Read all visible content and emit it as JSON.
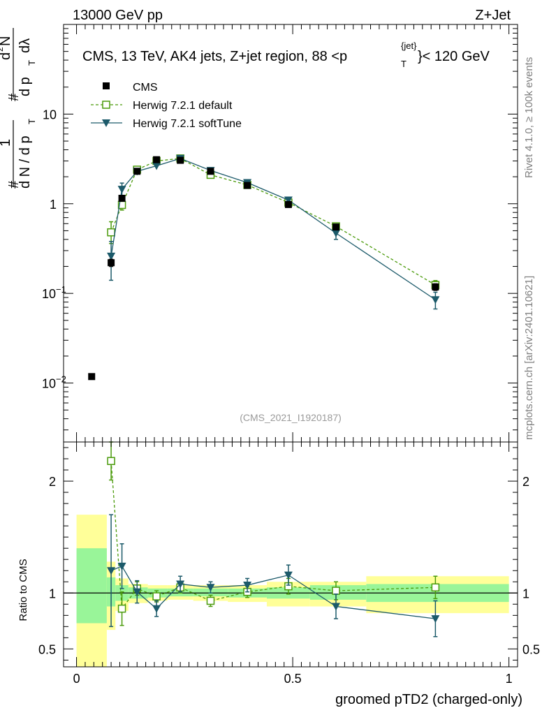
{
  "header": {
    "left": "13000 GeV pp",
    "right": "Z+Jet"
  },
  "title": "CMS, 13 TeV, AK4 jets, Z+jet region, 88 <p",
  "title_sup": "{jet}",
  "title_sub": "T",
  "title_end": "}< 120 GeV",
  "analysis_id": "(CMS_2021_I1920187)",
  "side_label_top": "Rivet 4.1.0, ≥ 100k events",
  "side_label_bottom": "mcplots.cern.ch [arXiv:2401.10621]",
  "ylabel_main": {
    "hash1": "#",
    "one": "1",
    "dN": "d N / d p",
    "T1": "T",
    "hash2": "#",
    "d2N": "d",
    "two": "2",
    "N": "N",
    "dpt": "d p",
    "T2": "T",
    "dlambda": "dλ"
  },
  "ylabel_ratio": "Ratio to CMS",
  "xlabel": "groomed pTD2 (charged-only)",
  "legend": [
    {
      "label": "CMS",
      "color": "#000000",
      "marker": "square-filled"
    },
    {
      "label": "Herwig 7.2.1 default",
      "color": "#4a9a0a",
      "marker": "square-open"
    },
    {
      "label": "Herwig 7.2.1 softTune",
      "color": "#1c5a6a",
      "marker": "triangle-down"
    }
  ],
  "chart_data": {
    "type": "scatter",
    "xlim": [
      -0.03,
      1.02
    ],
    "x_ticks": [
      "0",
      "0.5",
      "1"
    ],
    "main": {
      "yscale": "log",
      "ylim": [
        0.0022,
        100
      ],
      "y_ticks": [
        {
          "base": "10",
          "exp": "−2",
          "value": 0.01
        },
        {
          "base": "10",
          "exp": "−1",
          "value": 0.1
        },
        {
          "base": "1",
          "exp": "",
          "value": 1
        },
        {
          "base": "10",
          "exp": "",
          "value": 10
        }
      ]
    },
    "ratio": {
      "ylim": [
        0.34,
        2.35
      ],
      "y_ticks": [
        "0.5",
        "1",
        "2"
      ],
      "band_edges": [
        0,
        0.07,
        0.09,
        0.12,
        0.165,
        0.21,
        0.27,
        0.35,
        0.44,
        0.54,
        0.67,
        1.0
      ],
      "band_inner_lo": [
        0.73,
        0.88,
        0.93,
        0.95,
        0.96,
        0.97,
        0.97,
        0.96,
        0.95,
        0.94,
        0.92
      ],
      "band_inner_hi": [
        1.4,
        1.14,
        1.07,
        1.05,
        1.04,
        1.04,
        1.04,
        1.04,
        1.05,
        1.07,
        1.08
      ],
      "band_outer_lo": [
        0.34,
        0.67,
        0.84,
        0.91,
        0.93,
        0.94,
        0.93,
        0.92,
        0.88,
        0.88,
        0.82
      ],
      "band_outer_hi": [
        1.7,
        1.28,
        1.13,
        1.08,
        1.07,
        1.07,
        1.07,
        1.07,
        1.1,
        1.1,
        1.15
      ]
    },
    "series": [
      {
        "name": "CMS",
        "x": [
          0.035,
          0.08,
          0.105,
          0.14,
          0.185,
          0.24,
          0.31,
          0.395,
          0.49,
          0.6,
          0.83
        ],
        "y": [
          0.0118,
          0.22,
          1.15,
          2.3,
          3.1,
          3.05,
          2.3,
          1.6,
          0.98,
          0.55,
          0.118
        ],
        "yerr_lo": [
          0.0005,
          0.02,
          0.05,
          0.08,
          0.08,
          0.08,
          0.07,
          0.05,
          0.04,
          0.03,
          0.01
        ],
        "yerr_hi": [
          0.0005,
          0.02,
          0.05,
          0.08,
          0.08,
          0.08,
          0.07,
          0.05,
          0.04,
          0.03,
          0.01
        ]
      },
      {
        "name": "Herwig 7.2.1 default",
        "x": [
          0.08,
          0.105,
          0.14,
          0.185,
          0.24,
          0.31,
          0.395,
          0.49,
          0.6,
          0.83
        ],
        "y": [
          0.48,
          0.97,
          2.4,
          3.0,
          3.2,
          2.1,
          1.62,
          1.03,
          0.56,
          0.124
        ],
        "yerr_lo": [
          0.12,
          0.12,
          0.12,
          0.1,
          0.1,
          0.08,
          0.06,
          0.05,
          0.04,
          0.015
        ],
        "yerr_hi": [
          0.15,
          0.15,
          0.12,
          0.1,
          0.1,
          0.08,
          0.06,
          0.05,
          0.04,
          0.015
        ],
        "ratio": [
          2.18,
          0.86,
          1.04,
          0.97,
          1.05,
          0.93,
          1.01,
          1.06,
          1.02,
          1.05
        ],
        "ratio_err": [
          0.17,
          0.15,
          0.06,
          0.05,
          0.05,
          0.05,
          0.05,
          0.07,
          0.08,
          0.1
        ]
      },
      {
        "name": "Herwig 7.2.1 softTune",
        "x": [
          0.08,
          0.105,
          0.14,
          0.185,
          0.24,
          0.31,
          0.395,
          0.49,
          0.6,
          0.83
        ],
        "y": [
          0.26,
          1.45,
          2.3,
          2.65,
          3.2,
          2.35,
          1.72,
          1.1,
          0.47,
          0.085
        ],
        "yerr_lo": [
          0.12,
          0.25,
          0.15,
          0.12,
          0.12,
          0.1,
          0.08,
          0.07,
          0.07,
          0.018
        ],
        "yerr_hi": [
          0.12,
          0.25,
          0.15,
          0.12,
          0.12,
          0.1,
          0.08,
          0.07,
          0.07,
          0.018
        ],
        "ratio": [
          1.2,
          1.24,
          1.01,
          0.86,
          1.08,
          1.05,
          1.07,
          1.16,
          0.88,
          0.77
        ],
        "ratio_err": [
          0.5,
          0.2,
          0.1,
          0.07,
          0.07,
          0.05,
          0.06,
          0.09,
          0.11,
          0.16
        ]
      }
    ]
  }
}
